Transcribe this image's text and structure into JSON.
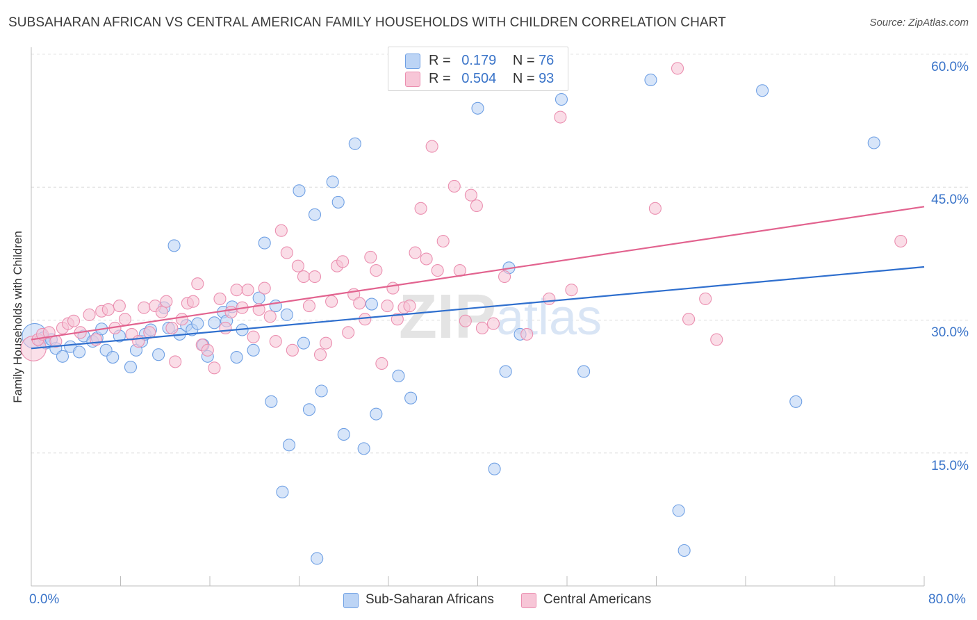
{
  "title": "SUBSAHARAN AFRICAN VS CENTRAL AMERICAN FAMILY HOUSEHOLDS WITH CHILDREN CORRELATION CHART",
  "source": "Source: ZipAtlas.com",
  "watermark": "ZIPatlas",
  "legend": {
    "rows": [
      {
        "r_label": "R =",
        "r_value": "0.179",
        "n_label": "N =",
        "n_value": "76"
      },
      {
        "r_label": "R =",
        "r_value": "0.504",
        "n_label": "N =",
        "n_value": "93"
      }
    ]
  },
  "chart_data": {
    "type": "scatter",
    "title": "SUBSAHARAN AFRICAN VS CENTRAL AMERICAN FAMILY HOUSEHOLDS WITH CHILDREN CORRELATION CHART",
    "xlabel": "",
    "ylabel": "Family Households with Children",
    "xlim": [
      0,
      80
    ],
    "ylim": [
      0,
      60
    ],
    "x_tick_labels": [
      "0.0%",
      "80.0%"
    ],
    "y_ticks": [
      15,
      30,
      45,
      60
    ],
    "y_tick_labels": [
      "15.0%",
      "30.0%",
      "45.0%",
      "60.0%"
    ],
    "grid": true,
    "legend_position": "top-center",
    "series": [
      {
        "name": "Sub-Saharan Africans",
        "color": "#6fa0e4",
        "fill": "#bcd4f5",
        "line_color": "#2f6fce",
        "R": 0.179,
        "N": 76,
        "trend": {
          "x": [
            0,
            80
          ],
          "y": [
            26.8,
            36.0
          ]
        },
        "points": [
          [
            0.3,
            28.2
          ],
          [
            0.8,
            27.6
          ],
          [
            1.1,
            28.0
          ],
          [
            1.3,
            27.4
          ],
          [
            1.8,
            27.8
          ],
          [
            2.2,
            26.8
          ],
          [
            2.8,
            25.9
          ],
          [
            3.5,
            27.0
          ],
          [
            4.3,
            26.4
          ],
          [
            4.7,
            28.2
          ],
          [
            5.5,
            27.6
          ],
          [
            5.9,
            28.0
          ],
          [
            6.3,
            29.0
          ],
          [
            6.7,
            26.6
          ],
          [
            7.3,
            25.8
          ],
          [
            7.9,
            28.2
          ],
          [
            8.9,
            24.7
          ],
          [
            9.4,
            26.6
          ],
          [
            9.9,
            27.6
          ],
          [
            10.2,
            28.4
          ],
          [
            10.7,
            28.9
          ],
          [
            11.4,
            26.1
          ],
          [
            11.9,
            31.4
          ],
          [
            12.3,
            29.1
          ],
          [
            12.8,
            38.4
          ],
          [
            13.3,
            28.4
          ],
          [
            13.9,
            29.4
          ],
          [
            14.4,
            28.9
          ],
          [
            14.9,
            29.6
          ],
          [
            15.4,
            27.2
          ],
          [
            15.8,
            25.9
          ],
          [
            16.4,
            29.7
          ],
          [
            17.2,
            30.9
          ],
          [
            17.5,
            29.9
          ],
          [
            18.0,
            31.5
          ],
          [
            18.4,
            25.8
          ],
          [
            18.9,
            28.9
          ],
          [
            19.9,
            26.6
          ],
          [
            20.4,
            32.5
          ],
          [
            20.9,
            38.7
          ],
          [
            21.5,
            20.8
          ],
          [
            21.9,
            31.6
          ],
          [
            22.5,
            10.6
          ],
          [
            22.9,
            30.6
          ],
          [
            23.1,
            15.9
          ],
          [
            24.0,
            44.6
          ],
          [
            24.4,
            27.4
          ],
          [
            24.9,
            19.9
          ],
          [
            25.4,
            41.9
          ],
          [
            25.6,
            3.1
          ],
          [
            26.0,
            22.0
          ],
          [
            27.0,
            45.6
          ],
          [
            27.5,
            43.3
          ],
          [
            28.0,
            17.1
          ],
          [
            29.0,
            49.9
          ],
          [
            29.8,
            15.5
          ],
          [
            30.5,
            31.8
          ],
          [
            30.9,
            19.4
          ],
          [
            32.5,
            58.2
          ],
          [
            32.9,
            23.7
          ],
          [
            34.0,
            21.2
          ],
          [
            40.0,
            53.9
          ],
          [
            41.5,
            13.2
          ],
          [
            42.5,
            24.2
          ],
          [
            42.8,
            35.9
          ],
          [
            43.8,
            28.4
          ],
          [
            47.5,
            54.9
          ],
          [
            49.5,
            24.2
          ],
          [
            55.5,
            57.1
          ],
          [
            58.0,
            8.5
          ],
          [
            58.5,
            4.0
          ],
          [
            65.5,
            55.9
          ],
          [
            68.5,
            20.8
          ],
          [
            75.5,
            50.0
          ]
        ]
      },
      {
        "name": "Central Americans",
        "color": "#eb8fb0",
        "fill": "#f7c6d7",
        "line_color": "#e2638f",
        "R": 0.504,
        "N": 93,
        "trend": {
          "x": [
            0,
            80
          ],
          "y": [
            27.8,
            42.8
          ]
        },
        "points": [
          [
            0.2,
            26.8
          ],
          [
            0.6,
            27.8
          ],
          [
            1.0,
            28.4
          ],
          [
            1.6,
            28.6
          ],
          [
            2.2,
            27.6
          ],
          [
            2.8,
            29.1
          ],
          [
            3.3,
            29.6
          ],
          [
            3.8,
            29.9
          ],
          [
            4.4,
            28.6
          ],
          [
            5.2,
            30.6
          ],
          [
            5.8,
            27.8
          ],
          [
            6.3,
            31.0
          ],
          [
            6.9,
            31.2
          ],
          [
            7.5,
            29.1
          ],
          [
            7.9,
            31.6
          ],
          [
            8.4,
            30.1
          ],
          [
            9.0,
            28.4
          ],
          [
            9.6,
            27.6
          ],
          [
            10.1,
            31.4
          ],
          [
            10.6,
            28.6
          ],
          [
            11.1,
            31.6
          ],
          [
            11.7,
            30.9
          ],
          [
            12.1,
            32.1
          ],
          [
            12.6,
            29.1
          ],
          [
            12.9,
            25.3
          ],
          [
            13.5,
            30.1
          ],
          [
            14.0,
            31.9
          ],
          [
            14.5,
            32.1
          ],
          [
            14.9,
            34.1
          ],
          [
            15.3,
            27.2
          ],
          [
            15.8,
            26.6
          ],
          [
            16.4,
            24.6
          ],
          [
            16.9,
            32.4
          ],
          [
            17.4,
            29.1
          ],
          [
            17.9,
            30.9
          ],
          [
            18.4,
            33.4
          ],
          [
            18.9,
            31.4
          ],
          [
            19.4,
            33.4
          ],
          [
            19.9,
            28.1
          ],
          [
            20.4,
            31.2
          ],
          [
            20.9,
            33.6
          ],
          [
            21.4,
            30.4
          ],
          [
            21.9,
            27.6
          ],
          [
            22.4,
            40.1
          ],
          [
            22.9,
            37.6
          ],
          [
            23.4,
            26.6
          ],
          [
            23.9,
            36.1
          ],
          [
            24.4,
            34.9
          ],
          [
            24.9,
            31.6
          ],
          [
            25.4,
            34.9
          ],
          [
            25.9,
            26.1
          ],
          [
            26.4,
            27.4
          ],
          [
            26.9,
            32.1
          ],
          [
            27.4,
            36.1
          ],
          [
            27.9,
            36.6
          ],
          [
            28.4,
            28.6
          ],
          [
            28.9,
            32.9
          ],
          [
            29.4,
            31.9
          ],
          [
            29.9,
            30.1
          ],
          [
            30.4,
            37.1
          ],
          [
            30.9,
            35.6
          ],
          [
            31.4,
            25.1
          ],
          [
            31.9,
            31.6
          ],
          [
            32.4,
            33.6
          ],
          [
            32.8,
            30.1
          ],
          [
            33.4,
            31.4
          ],
          [
            33.9,
            31.6
          ],
          [
            34.4,
            37.6
          ],
          [
            34.9,
            42.6
          ],
          [
            35.4,
            36.9
          ],
          [
            35.9,
            49.6
          ],
          [
            36.4,
            35.6
          ],
          [
            36.9,
            38.9
          ],
          [
            37.9,
            45.1
          ],
          [
            38.4,
            35.6
          ],
          [
            38.9,
            29.9
          ],
          [
            39.4,
            44.1
          ],
          [
            39.9,
            42.9
          ],
          [
            40.4,
            29.1
          ],
          [
            41.4,
            29.6
          ],
          [
            42.4,
            34.9
          ],
          [
            44.4,
            28.4
          ],
          [
            46.4,
            32.4
          ],
          [
            47.4,
            52.9
          ],
          [
            48.4,
            33.4
          ],
          [
            55.9,
            42.6
          ],
          [
            57.9,
            58.4
          ],
          [
            58.9,
            30.1
          ],
          [
            60.4,
            32.4
          ],
          [
            61.4,
            27.8
          ],
          [
            77.9,
            38.9
          ]
        ]
      }
    ]
  },
  "bottom_legend": [
    {
      "label": "Sub-Saharan Africans"
    },
    {
      "label": "Central Americans"
    }
  ]
}
